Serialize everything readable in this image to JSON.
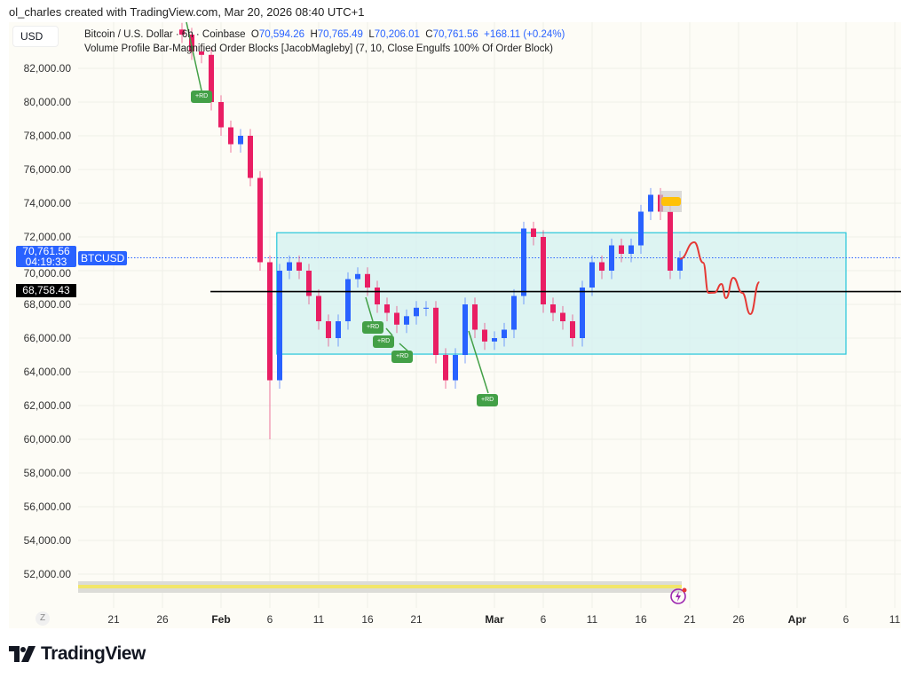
{
  "credit": "ol_charles created with TradingView.com, Mar 20, 2026 08:40 UTC+1",
  "currency": "USD",
  "legend": {
    "symbol": "Bitcoin / U.S. Dollar · 6h · Coinbase",
    "o_label": "O",
    "o": "70,594.26",
    "h_label": "H",
    "h": "70,765.49",
    "l_label": "L",
    "l": "70,206.01",
    "c_label": "C",
    "c": "70,761.56",
    "change": "+168.11 (+0.24%)",
    "indicator": "Volume Profile Bar-Magnified Order Blocks [JacobMagleby] (7, 10, Close Engulfs 100% Of Order Block)"
  },
  "price_tag": {
    "price": "70,761.56",
    "countdown": "04:19:33",
    "symbol": "BTCUSD"
  },
  "line_tag": "68,758.43",
  "y_ticks": [
    "82,000.00",
    "80,000.00",
    "78,000.00",
    "76,000.00",
    "74,000.00",
    "72,000.00",
    "70,000.00",
    "68,000.00",
    "66,000.00",
    "64,000.00",
    "62,000.00",
    "60,000.00",
    "58,000.00",
    "56,000.00",
    "54,000.00",
    "52,000.00"
  ],
  "x_ticks": [
    {
      "label": "21",
      "date": "2026-01-21"
    },
    {
      "label": "26",
      "date": "2026-01-26"
    },
    {
      "label": "Feb",
      "date": "2026-02-01",
      "bold": true
    },
    {
      "label": "6",
      "date": "2026-02-06"
    },
    {
      "label": "11",
      "date": "2026-02-11"
    },
    {
      "label": "16",
      "date": "2026-02-16"
    },
    {
      "label": "21",
      "date": "2026-02-21"
    },
    {
      "label": "Mar",
      "date": "2026-03-01",
      "bold": true
    },
    {
      "label": "6",
      "date": "2026-03-06"
    },
    {
      "label": "11",
      "date": "2026-03-11"
    },
    {
      "label": "16",
      "date": "2026-03-16"
    },
    {
      "label": "21",
      "date": "2026-03-21"
    },
    {
      "label": "26",
      "date": "2026-03-26"
    },
    {
      "label": "Apr",
      "date": "2026-04-01",
      "bold": true
    },
    {
      "label": "6",
      "date": "2026-04-06"
    },
    {
      "label": "11",
      "date": "2026-04-11"
    }
  ],
  "zoom_button": "Z",
  "rd_labels": [
    "+RD",
    "+RD",
    "+RD",
    "+RD",
    "+RD"
  ],
  "brand": "TradingView",
  "colors": {
    "up": "#2962ff",
    "down": "#e91e63",
    "zone_fill": "#d4f1f1",
    "zone_border": "#26c6da",
    "forecast": "#e53935",
    "rd": "#43a047",
    "hline": "#000000"
  },
  "chart_data": {
    "type": "candlestick",
    "ylim": [
      50500,
      85000
    ],
    "closes": [
      [
        "2026-01-28",
        84000
      ],
      [
        "2026-01-29",
        83000
      ],
      [
        "2026-01-30",
        82800
      ],
      [
        "2026-01-31",
        80000
      ],
      [
        "2026-02-01",
        78500
      ],
      [
        "2026-02-02",
        77500
      ],
      [
        "2026-02-03",
        78000
      ],
      [
        "2026-02-04",
        75500
      ],
      [
        "2026-02-05",
        70500
      ],
      [
        "2026-02-06",
        63500
      ],
      [
        "2026-02-07",
        70000
      ],
      [
        "2026-02-08",
        70500
      ],
      [
        "2026-02-09",
        70000
      ],
      [
        "2026-02-10",
        68500
      ],
      [
        "2026-02-11",
        67000
      ],
      [
        "2026-02-12",
        66000
      ],
      [
        "2026-02-13",
        67000
      ],
      [
        "2026-02-14",
        69500
      ],
      [
        "2026-02-15",
        69800
      ],
      [
        "2026-02-16",
        69000
      ],
      [
        "2026-02-17",
        68000
      ],
      [
        "2026-02-18",
        67500
      ],
      [
        "2026-02-19",
        66800
      ],
      [
        "2026-02-20",
        67300
      ],
      [
        "2026-02-21",
        67800
      ],
      [
        "2026-02-22",
        67800
      ],
      [
        "2026-02-23",
        65000
      ],
      [
        "2026-02-24",
        63500
      ],
      [
        "2026-02-25",
        65000
      ],
      [
        "2026-02-26",
        68000
      ],
      [
        "2026-02-27",
        66500
      ],
      [
        "2026-02-28",
        65800
      ],
      [
        "2026-03-01",
        66000
      ],
      [
        "2026-03-02",
        66500
      ],
      [
        "2026-03-03",
        68500
      ],
      [
        "2026-03-04",
        72500
      ],
      [
        "2026-03-05",
        72000
      ],
      [
        "2026-03-06",
        68000
      ],
      [
        "2026-03-07",
        67500
      ],
      [
        "2026-03-08",
        67000
      ],
      [
        "2026-03-09",
        66000
      ],
      [
        "2026-03-10",
        69000
      ],
      [
        "2026-03-11",
        70500
      ],
      [
        "2026-03-12",
        70000
      ],
      [
        "2026-03-13",
        71500
      ],
      [
        "2026-03-14",
        71000
      ],
      [
        "2026-03-15",
        71500
      ],
      [
        "2026-03-16",
        73500
      ],
      [
        "2026-03-17",
        74500
      ],
      [
        "2026-03-18",
        73500
      ],
      [
        "2026-03-19",
        70000
      ],
      [
        "2026-03-20",
        70761.56
      ]
    ],
    "feb6_low": 60000,
    "current_price": 70761.56,
    "horizontal_line": {
      "price": 68758.43,
      "from": "2026-01-30T22:00"
    },
    "zone": {
      "from": "2026-02-06T17:00",
      "to": "2026-04-06T00:00",
      "top": 72250,
      "bottom": 65050
    },
    "forecast": [
      [
        "2026-03-20T00:00",
        70700
      ],
      [
        "2026-03-21T11:00",
        71684
      ],
      [
        "2026-03-22T09:00",
        70474
      ],
      [
        "2026-03-22T22:00",
        68684
      ],
      [
        "2026-03-23T13:00",
        68700
      ],
      [
        "2026-03-24T06:00",
        69210
      ],
      [
        "2026-03-24T17:00",
        68368
      ],
      [
        "2026-03-25T11:00",
        69579
      ],
      [
        "2026-03-26T09:00",
        68684
      ],
      [
        "2026-03-27T05:00",
        67421
      ],
      [
        "2026-03-28T03:00",
        69316
      ]
    ]
  }
}
